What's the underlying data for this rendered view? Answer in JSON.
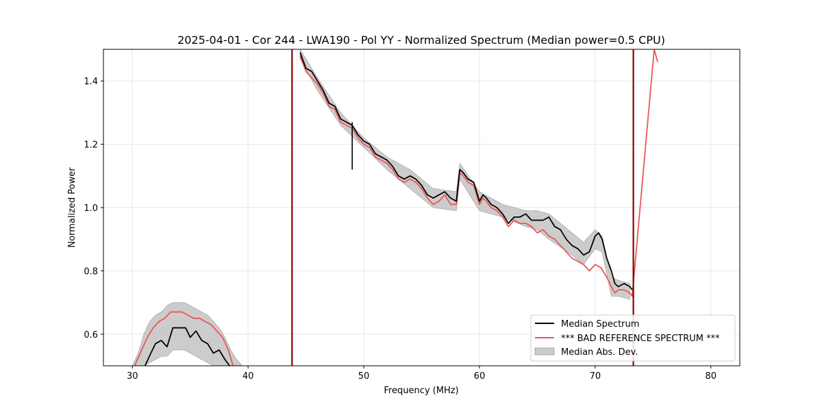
{
  "chart_data": {
    "type": "line",
    "title": "2025-04-01 - Cor 244 - LWA190 - Pol YY - Normalized Spectrum (Median power=0.5 CPU)",
    "xlabel": "Frequency (MHz)",
    "ylabel": "Normalized Power",
    "xlim": [
      27.5,
      82.5
    ],
    "ylim": [
      0.5,
      1.5
    ],
    "xticks": [
      30,
      40,
      50,
      60,
      70,
      80
    ],
    "yticks": [
      0.6,
      0.8,
      1.0,
      1.2,
      1.4
    ],
    "grid": true,
    "legend_position": "lower-right",
    "legend": [
      {
        "label": "Median Spectrum",
        "kind": "line",
        "color": "#000000"
      },
      {
        "label": "*** BAD REFERENCE SPECTRUM ***",
        "kind": "line",
        "color": "#ee5555"
      },
      {
        "label": "Median Abs. Dev.",
        "kind": "patch",
        "color": "#bbbbbb"
      }
    ],
    "series": [
      {
        "name": "Median Spectrum",
        "color": "#000000",
        "x": [
          31.1,
          31.6,
          32.0,
          32.5,
          33.0,
          33.5,
          34.0,
          34.6,
          35.0,
          35.5,
          36.0,
          36.5,
          37.0,
          37.5,
          38.0,
          38.4,
          44.5,
          45.0,
          45.5,
          46.0,
          46.5,
          47.0,
          47.5,
          48.0,
          48.5,
          49.0,
          49.5,
          50.0,
          50.5,
          51.0,
          51.5,
          52.0,
          52.5,
          53.0,
          53.5,
          54.0,
          54.5,
          55.0,
          55.5,
          56.0,
          56.5,
          57.0,
          57.5,
          58.0,
          58.3,
          58.6,
          59.0,
          59.5,
          60.0,
          60.3,
          60.6,
          61.0,
          61.5,
          62.0,
          62.5,
          63.0,
          63.5,
          64.0,
          64.5,
          65.0,
          65.5,
          66.0,
          66.5,
          67.0,
          67.5,
          68.0,
          68.5,
          69.0,
          69.5,
          70.0,
          70.3,
          70.6,
          71.0,
          71.4,
          71.7,
          72.0,
          72.5,
          73.0,
          73.2
        ],
        "y": [
          0.5,
          0.54,
          0.57,
          0.58,
          0.56,
          0.62,
          0.62,
          0.62,
          0.59,
          0.61,
          0.58,
          0.57,
          0.54,
          0.55,
          0.52,
          0.5,
          1.49,
          1.44,
          1.43,
          1.4,
          1.37,
          1.33,
          1.32,
          1.28,
          1.27,
          1.26,
          1.23,
          1.21,
          1.2,
          1.17,
          1.16,
          1.15,
          1.13,
          1.1,
          1.09,
          1.1,
          1.09,
          1.07,
          1.04,
          1.03,
          1.04,
          1.05,
          1.03,
          1.02,
          1.12,
          1.11,
          1.09,
          1.08,
          1.02,
          1.04,
          1.03,
          1.01,
          1.0,
          0.98,
          0.95,
          0.97,
          0.97,
          0.98,
          0.96,
          0.96,
          0.96,
          0.97,
          0.94,
          0.93,
          0.9,
          0.88,
          0.87,
          0.85,
          0.86,
          0.91,
          0.92,
          0.9,
          0.84,
          0.8,
          0.76,
          0.75,
          0.76,
          0.75,
          0.74
        ]
      },
      {
        "name": "*** BAD REFERENCE SPECTRUM ***",
        "color": "#ee5555",
        "x": [
          30.2,
          30.8,
          31.3,
          31.8,
          32.3,
          32.8,
          33.3,
          33.8,
          34.3,
          34.8,
          35.3,
          35.8,
          36.3,
          36.8,
          37.3,
          37.8,
          38.3,
          38.7,
          44.5,
          45.0,
          45.5,
          46.0,
          46.5,
          47.0,
          47.5,
          48.0,
          48.5,
          49.0,
          49.5,
          50.0,
          50.5,
          51.0,
          51.5,
          52.0,
          52.5,
          53.0,
          53.5,
          54.0,
          54.5,
          55.0,
          55.5,
          56.0,
          56.5,
          57.0,
          57.5,
          58.0,
          58.3,
          58.6,
          59.0,
          59.5,
          60.0,
          60.3,
          60.6,
          61.0,
          61.5,
          62.0,
          62.5,
          63.0,
          63.5,
          64.0,
          64.5,
          65.0,
          65.5,
          66.0,
          66.5,
          67.0,
          67.5,
          68.0,
          68.5,
          69.0,
          69.5,
          70.0,
          70.5,
          71.0,
          71.4,
          71.7,
          72.0,
          72.5,
          73.0,
          73.2,
          75.1,
          75.4
        ],
        "y": [
          0.5,
          0.55,
          0.59,
          0.62,
          0.64,
          0.65,
          0.67,
          0.67,
          0.67,
          0.66,
          0.65,
          0.65,
          0.64,
          0.63,
          0.61,
          0.59,
          0.55,
          0.5,
          1.48,
          1.43,
          1.41,
          1.39,
          1.36,
          1.32,
          1.31,
          1.27,
          1.26,
          1.25,
          1.22,
          1.2,
          1.19,
          1.16,
          1.15,
          1.14,
          1.12,
          1.09,
          1.08,
          1.09,
          1.08,
          1.06,
          1.03,
          1.01,
          1.02,
          1.04,
          1.01,
          1.01,
          1.11,
          1.1,
          1.08,
          1.07,
          1.01,
          1.03,
          1.02,
          1.0,
          0.99,
          0.97,
          0.94,
          0.96,
          0.95,
          0.95,
          0.94,
          0.92,
          0.93,
          0.91,
          0.9,
          0.88,
          0.86,
          0.84,
          0.83,
          0.82,
          0.8,
          0.82,
          0.81,
          0.78,
          0.75,
          0.73,
          0.74,
          0.74,
          0.73,
          0.72,
          1.5,
          1.46
        ]
      }
    ],
    "spikes": [
      {
        "x": 43.8,
        "color": "#8b0000"
      },
      {
        "x": 73.3,
        "color": "#8b0000"
      }
    ],
    "dip": {
      "x": 49.0,
      "y_low": 1.12
    },
    "mad_band": {
      "name": "Median Abs. Dev.",
      "color": "#bbbbbb",
      "x": [
        30.0,
        30.5,
        31.0,
        31.5,
        32.0,
        32.5,
        33.0,
        33.5,
        34.0,
        34.5,
        35.0,
        35.5,
        36.0,
        36.5,
        37.0,
        37.5,
        38.0,
        38.5,
        39.0,
        39.5,
        44.5,
        46.0,
        48.0,
        50.0,
        52.0,
        54.0,
        56.0,
        58.0,
        58.3,
        60.0,
        62.0,
        64.0,
        65.0,
        66.0,
        68.0,
        69.0,
        70.0,
        70.6,
        71.4,
        72.0,
        73.0
      ],
      "upper": [
        0.5,
        0.54,
        0.6,
        0.64,
        0.66,
        0.67,
        0.69,
        0.7,
        0.7,
        0.7,
        0.69,
        0.68,
        0.67,
        0.66,
        0.64,
        0.62,
        0.59,
        0.55,
        0.52,
        0.5,
        1.5,
        1.41,
        1.3,
        1.22,
        1.16,
        1.12,
        1.06,
        1.05,
        1.14,
        1.05,
        1.01,
        0.99,
        0.99,
        0.98,
        0.92,
        0.89,
        0.93,
        0.91,
        0.78,
        0.77,
        0.76
      ],
      "lower": [
        0.5,
        0.5,
        0.5,
        0.51,
        0.52,
        0.53,
        0.53,
        0.55,
        0.55,
        0.55,
        0.54,
        0.53,
        0.52,
        0.51,
        0.5,
        0.5,
        0.5,
        0.5,
        0.5,
        0.5,
        1.47,
        1.37,
        1.26,
        1.19,
        1.12,
        1.06,
        1.0,
        0.99,
        1.09,
        0.99,
        0.97,
        0.94,
        0.93,
        0.9,
        0.85,
        0.82,
        0.87,
        0.86,
        0.72,
        0.72,
        0.71
      ]
    }
  }
}
